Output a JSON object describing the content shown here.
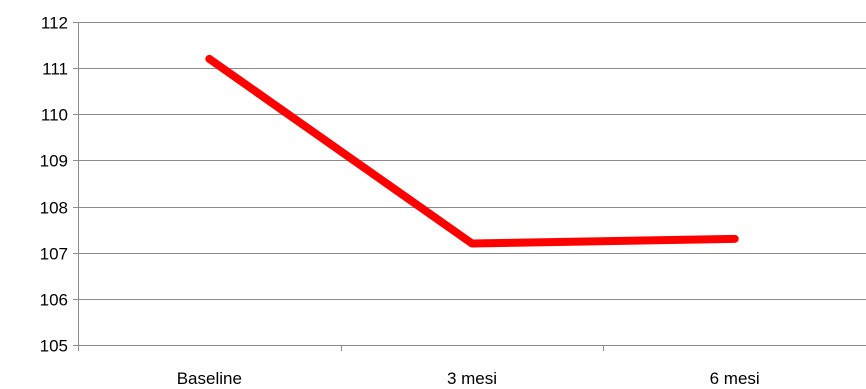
{
  "chart_data": {
    "type": "line",
    "categories": [
      "Baseline",
      "3 mesi",
      "6 mesi"
    ],
    "series": [
      {
        "values": [
          111.2,
          107.2,
          107.3
        ],
        "color": "#ff0000"
      }
    ],
    "title": "",
    "xlabel": "",
    "ylabel": "",
    "ylim": [
      105,
      112
    ],
    "yticks": [
      "105",
      "106",
      "107",
      "108",
      "109",
      "110",
      "111",
      "112"
    ],
    "grid": true,
    "legend": "none",
    "gridline_color": "#8c8c8c"
  }
}
